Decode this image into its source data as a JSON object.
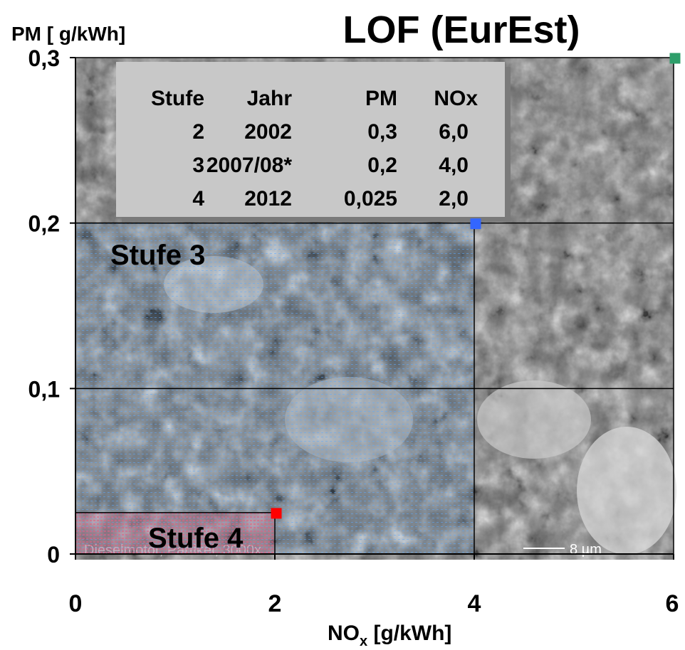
{
  "chart_data": {
    "type": "scatter",
    "title": "LOF (EurEst)",
    "ylabel": "PM [ g/kWh]",
    "xlabel_main": "NO",
    "xlabel_sub": "x",
    "xlabel_unit": " [g/kWh]",
    "x_ticks": [
      "0",
      "2",
      "4",
      "6"
    ],
    "y_ticks": [
      "0",
      "0,1",
      "0,2",
      "0,3"
    ],
    "xlim": [
      0,
      6
    ],
    "ylim": [
      0,
      0.3
    ],
    "grid": true,
    "background": "scanning electron microscope image of particles",
    "image_caption": "Dieselmotor, Partikel, 3000x",
    "scale_bar_label": "8 µm",
    "points": [
      {
        "stufe": "2",
        "x": 6.0,
        "y": 0.3,
        "color": "#2e9e6a"
      },
      {
        "stufe": "3",
        "x": 4.0,
        "y": 0.2,
        "color": "#3366ff"
      },
      {
        "stufe": "4",
        "x": 2.0,
        "y": 0.025,
        "color": "#ff0000"
      }
    ],
    "regions": [
      {
        "label": "Stufe 3",
        "x": [
          0,
          4
        ],
        "y": [
          0,
          0.2
        ],
        "color": "#4a90e2"
      },
      {
        "label": "Stufe 4",
        "x": [
          0,
          2
        ],
        "y": [
          0,
          0.025
        ],
        "color": "#e0708a"
      }
    ],
    "table": {
      "headers": [
        "Stufe",
        "Jahr",
        "PM",
        "NOx"
      ],
      "rows": [
        [
          "2",
          "2002",
          "0,3",
          "6,0"
        ],
        [
          "3",
          "2007/08*",
          "0,2",
          "4,0"
        ],
        [
          "4",
          "2012",
          "0,025",
          "2,0"
        ]
      ]
    }
  }
}
